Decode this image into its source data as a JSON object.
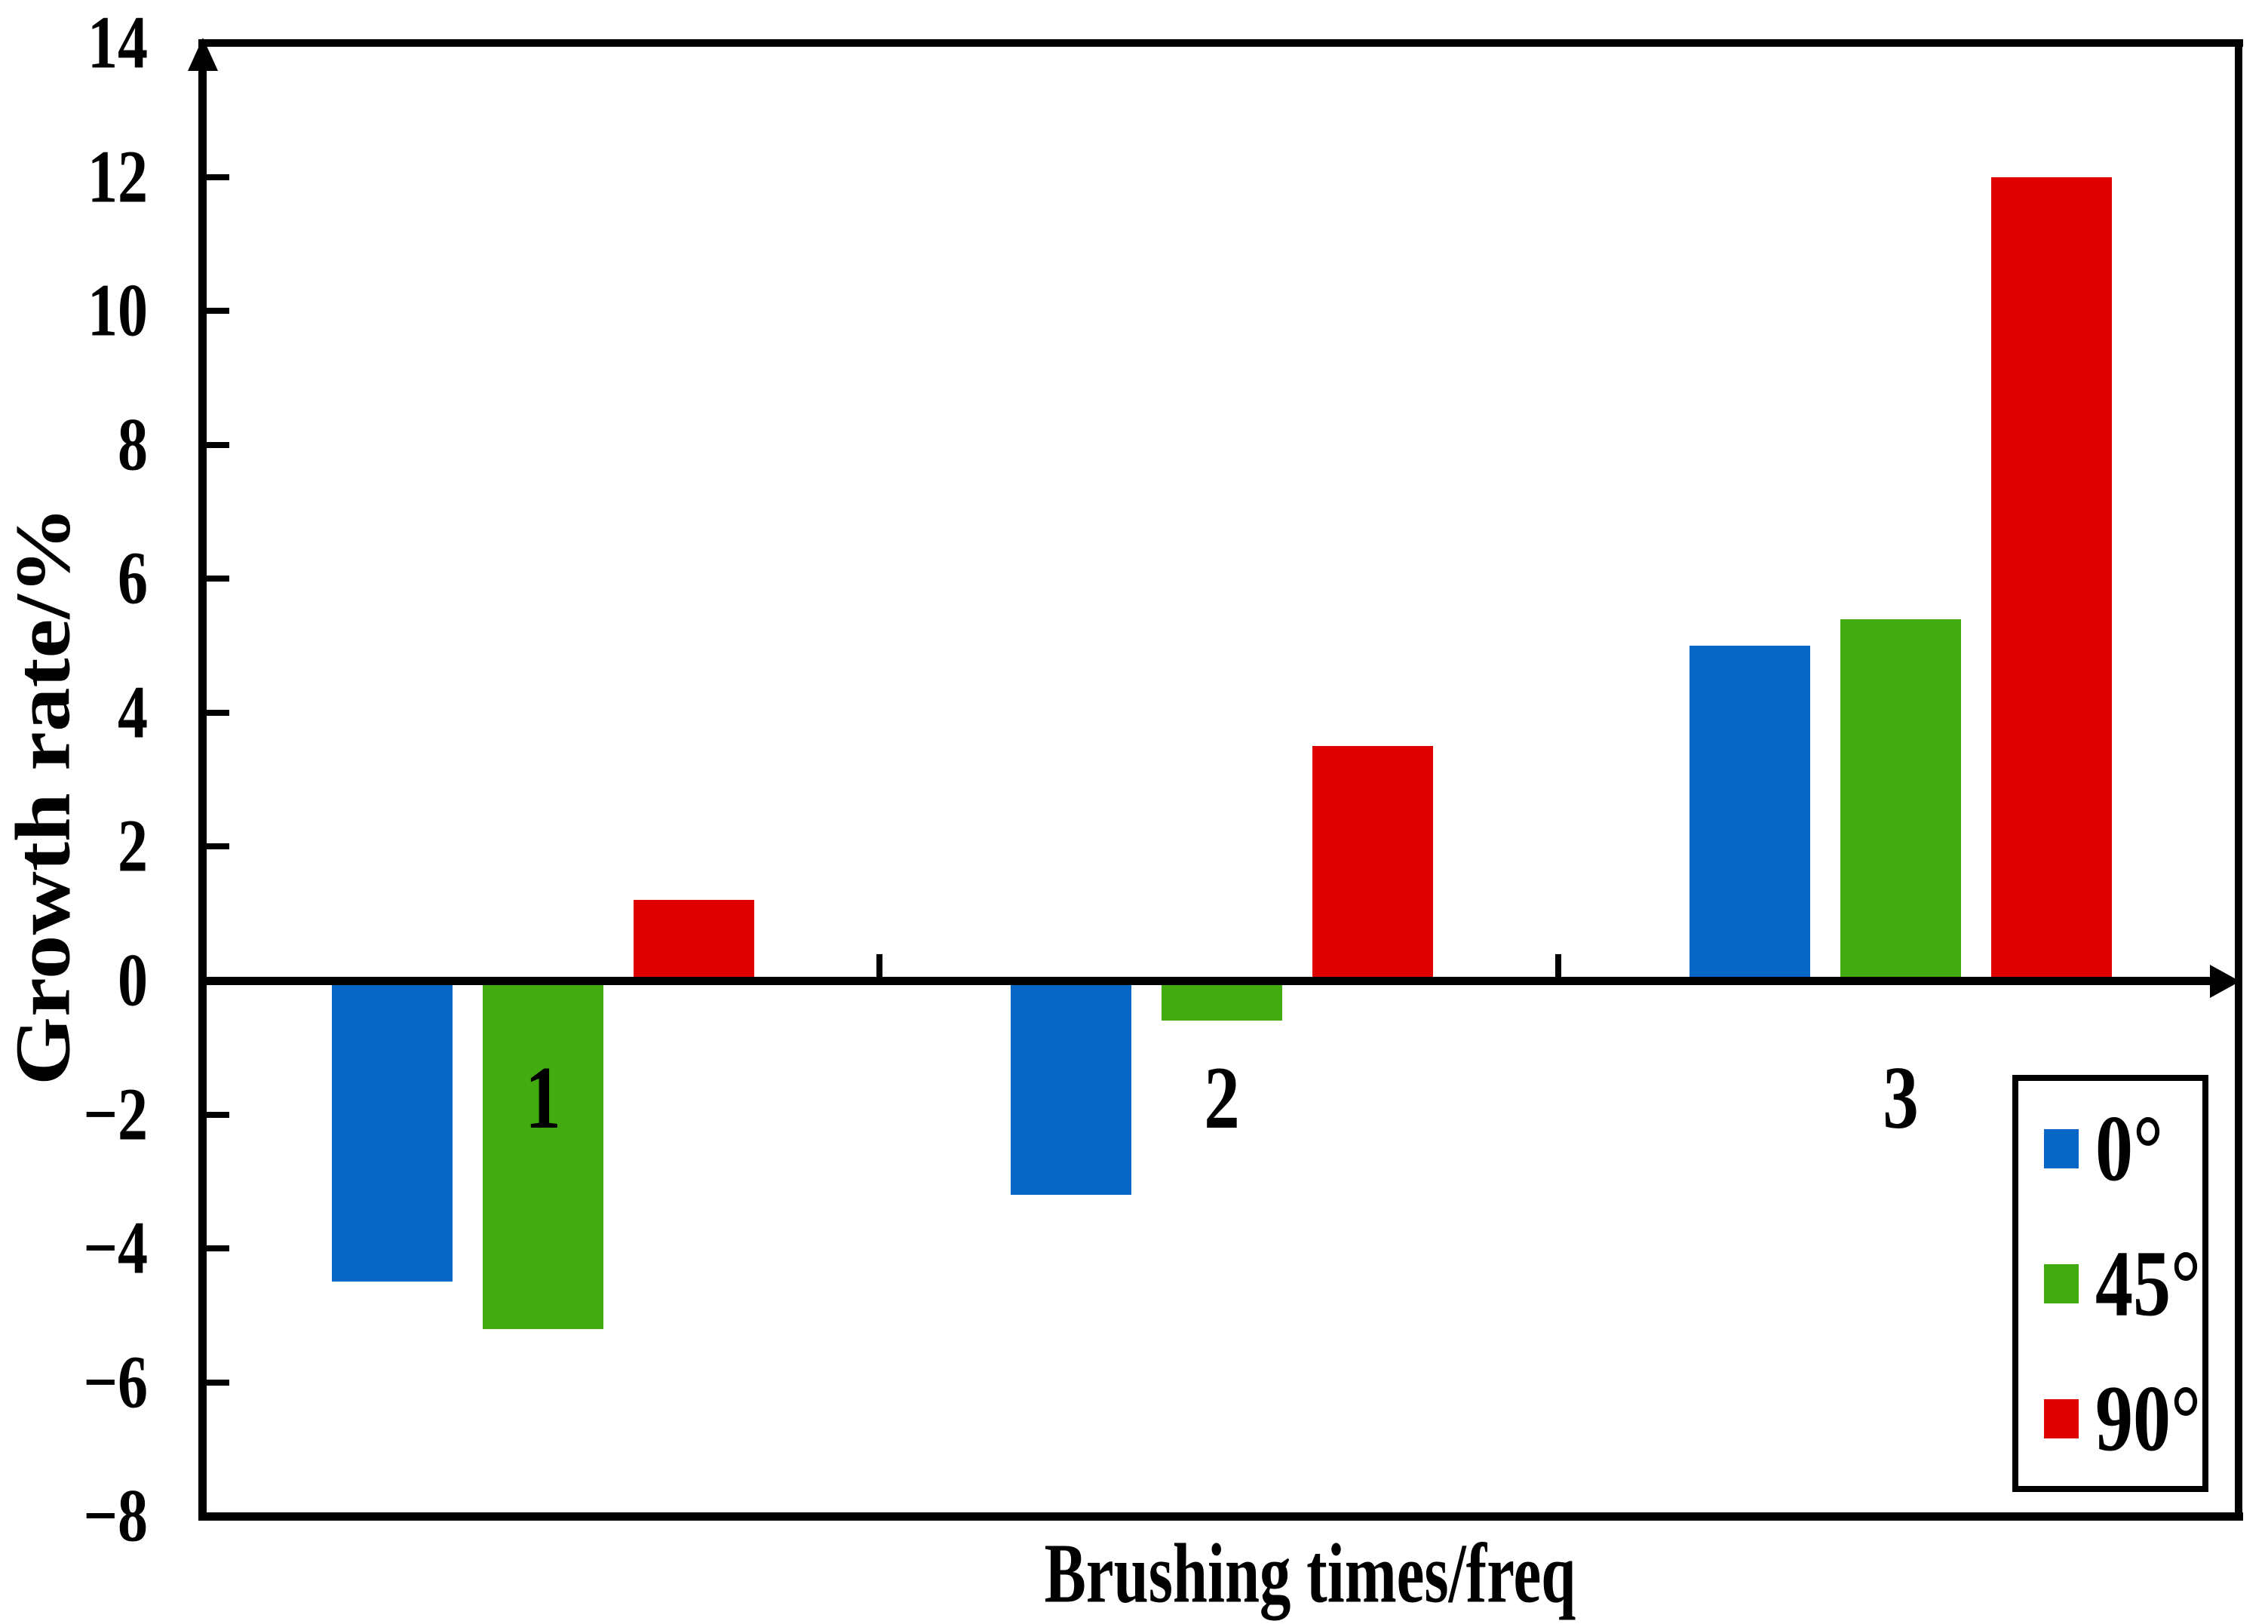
{
  "figure": {
    "background": "#FFFFFF",
    "axis_color": "#000000"
  },
  "chart_data": {
    "type": "bar",
    "title": "",
    "xlabel": "Brushing times/freq",
    "ylabel": "Growth rate/%",
    "categories": [
      "1",
      "2",
      "3"
    ],
    "series": [
      {
        "name": "0°",
        "color": "#0666C6",
        "values": [
          -4.5,
          -3.2,
          5.0
        ]
      },
      {
        "name": "45°",
        "color": "#42AB10",
        "values": [
          -5.2,
          -0.6,
          5.4
        ]
      },
      {
        "name": "90°",
        "color": "#DF0000",
        "values": [
          1.2,
          3.5,
          12.0
        ]
      }
    ],
    "ylim": [
      -8,
      14
    ],
    "ytick_step": 2,
    "yticks": [
      14,
      12,
      10,
      8,
      6,
      4,
      2,
      0,
      -2,
      -4,
      -6,
      -8
    ],
    "ytick_labels": [
      "14",
      "12",
      "10",
      "8",
      "6",
      "4",
      "2",
      "0",
      "−2",
      "−4",
      "−6",
      "−8"
    ],
    "legend_position": "bottom-right",
    "grid": false
  }
}
